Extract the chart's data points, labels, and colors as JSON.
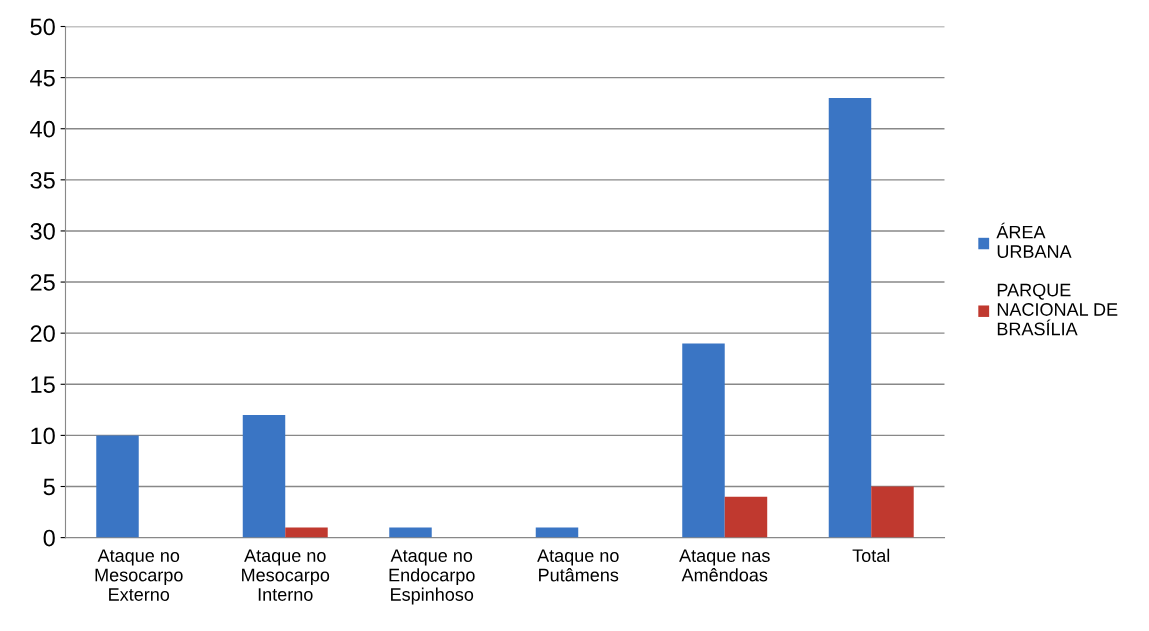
{
  "chart_data": {
    "type": "bar",
    "categories": [
      "Ataque no\nMesocarpo\nExterno",
      "Ataque no\nMesocarpo\nInterno",
      "Ataque no\nEndocarpo\nEspinhoso",
      "Ataque no\nPutâmens",
      "Ataque nas\nAmêndoas",
      "Total"
    ],
    "series": [
      {
        "name": "ÁREA\nURBANA",
        "color": "#3a75c4",
        "values": [
          10,
          12,
          1,
          1,
          19,
          43
        ]
      },
      {
        "name": "PARQUE\nNACIONAL DE\nBRASÍLIA",
        "color": "#c0392f",
        "values": [
          0,
          1,
          0,
          0,
          4,
          5
        ]
      }
    ],
    "ylim": [
      0,
      50
    ],
    "yticks": [
      0,
      5,
      10,
      15,
      20,
      25,
      30,
      35,
      40,
      45,
      50
    ],
    "grid": "y",
    "legend": "right"
  }
}
